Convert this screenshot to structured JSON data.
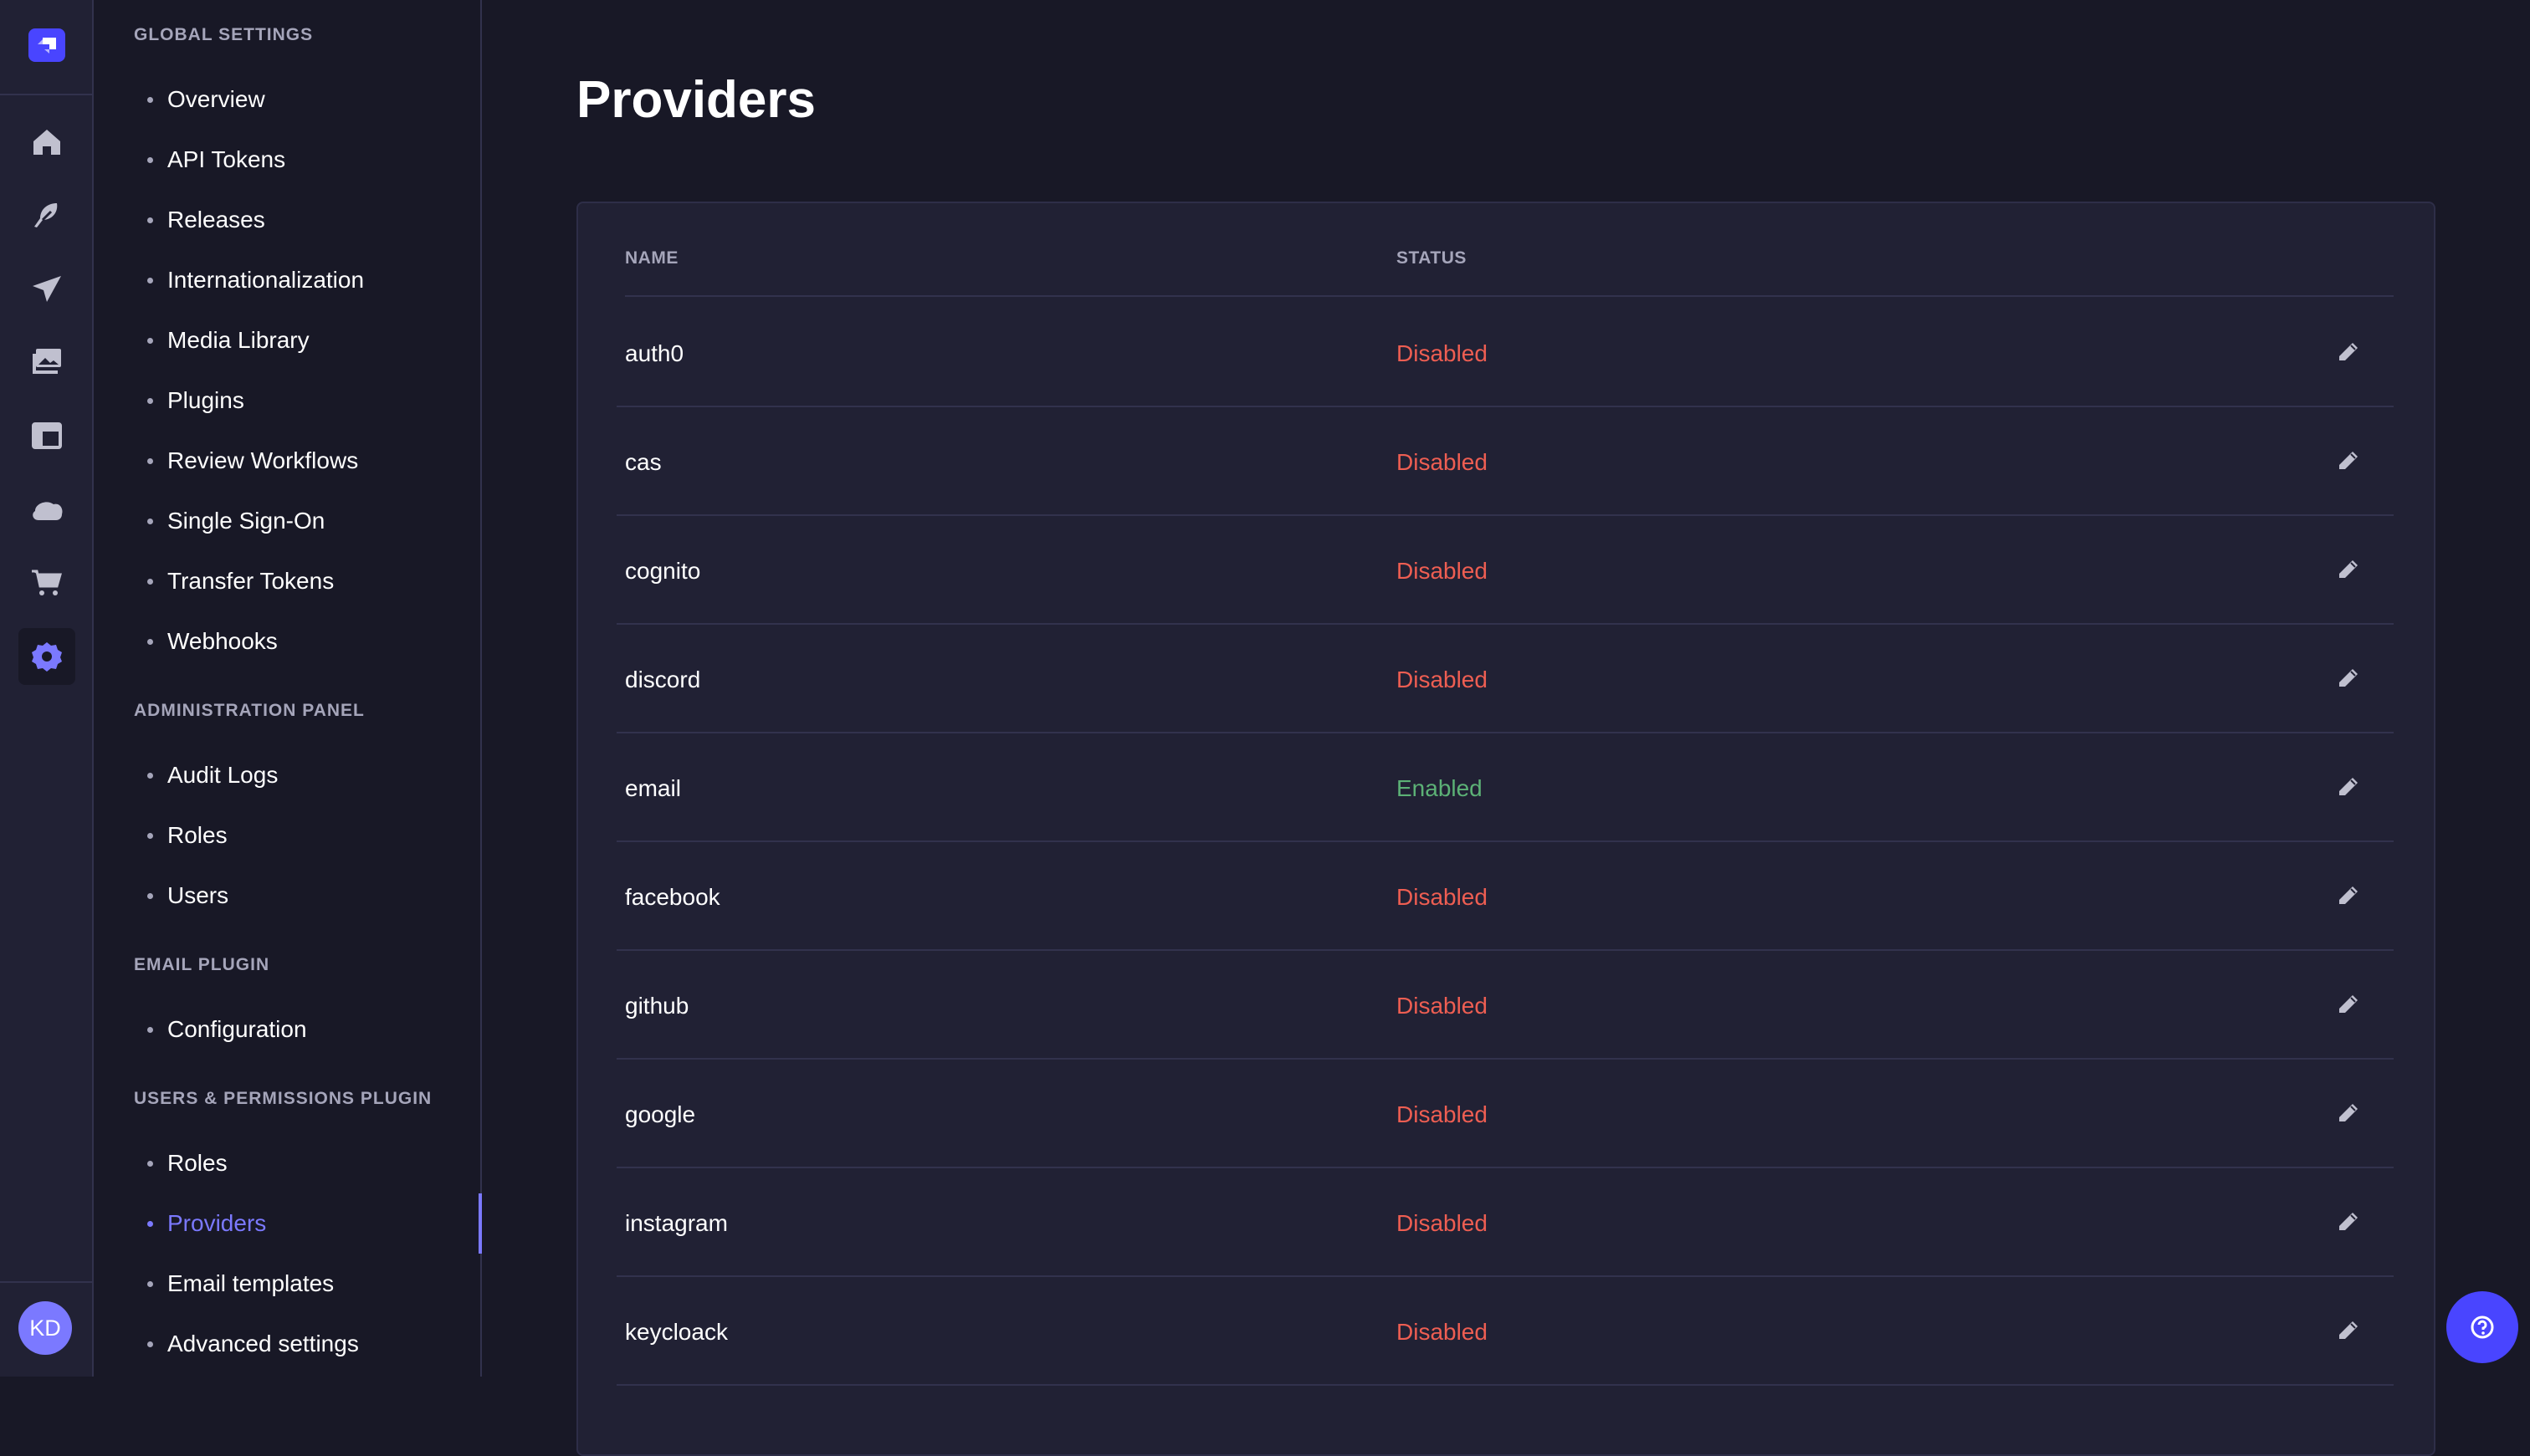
{
  "rail": {
    "icons": [
      "home-icon",
      "feather-icon",
      "paper-plane-icon",
      "images-icon",
      "layout-icon",
      "cloud-icon",
      "cart-icon",
      "gear-icon"
    ],
    "active": "gear-icon",
    "avatar_initials": "KD",
    "accent": "#4945ff"
  },
  "sidebar": {
    "sections": [
      {
        "title": "GLOBAL SETTINGS",
        "items": [
          "Overview",
          "API Tokens",
          "Releases",
          "Internationalization",
          "Media Library",
          "Plugins",
          "Review Workflows",
          "Single Sign-On",
          "Transfer Tokens",
          "Webhooks"
        ]
      },
      {
        "title": "ADMINISTRATION PANEL",
        "items": [
          "Audit Logs",
          "Roles",
          "Users"
        ]
      },
      {
        "title": "EMAIL PLUGIN",
        "items": [
          "Configuration"
        ]
      },
      {
        "title": "USERS & PERMISSIONS PLUGIN",
        "items": [
          "Roles",
          "Providers",
          "Email templates",
          "Advanced settings"
        ]
      }
    ],
    "active": "Providers"
  },
  "main": {
    "title": "Providers",
    "columns": [
      "NAME",
      "STATUS"
    ],
    "rows": [
      {
        "name": "auth0",
        "status": "Disabled"
      },
      {
        "name": "cas",
        "status": "Disabled"
      },
      {
        "name": "cognito",
        "status": "Disabled"
      },
      {
        "name": "discord",
        "status": "Disabled"
      },
      {
        "name": "email",
        "status": "Enabled"
      },
      {
        "name": "facebook",
        "status": "Disabled"
      },
      {
        "name": "github",
        "status": "Disabled"
      },
      {
        "name": "google",
        "status": "Disabled"
      },
      {
        "name": "instagram",
        "status": "Disabled"
      },
      {
        "name": "keycloack",
        "status": "Disabled"
      }
    ]
  },
  "colors": {
    "enabled": "#5cb176",
    "disabled": "#ee5e52",
    "active": "#7b79ff"
  }
}
